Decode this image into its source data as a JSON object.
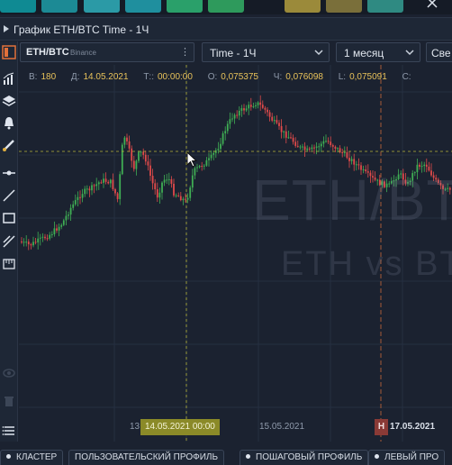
{
  "top_tabs": [
    {
      "color": "#0f8a93",
      "left": 0,
      "width": 40
    },
    {
      "color": "#1c8a95",
      "left": 46,
      "width": 40
    },
    {
      "color": "#2b9aa6",
      "left": 93,
      "width": 40
    },
    {
      "color": "#1f8f9e",
      "left": 139,
      "width": 40
    },
    {
      "color": "#2aa06a",
      "left": 185,
      "width": 40
    },
    {
      "color": "#2e9a5c",
      "left": 231,
      "width": 40
    },
    {
      "color": "#9b8a3a",
      "left": 316,
      "width": 40
    },
    {
      "color": "#7a6f3a",
      "left": 362,
      "width": 40
    },
    {
      "color": "#2f8a82",
      "left": 408,
      "width": 40
    }
  ],
  "window": {
    "title": "График ETH/BTC Time - 1Ч"
  },
  "toolbar": {
    "symbol": "ETH/BTC",
    "exchange": "Binance",
    "timeframe": "Time - 1Ч",
    "period": "1 месяц",
    "style_partial": "Све"
  },
  "info": {
    "volume_key": "В:",
    "volume": "180",
    "date_key": "Д:",
    "date": "14.05.2021",
    "time_key": "Т::",
    "time": "00:00:00",
    "open_key": "О:",
    "open": "0,075375",
    "high_key": "Ч:",
    "high": "0,076098",
    "low_key": "L:",
    "low": "0,075091",
    "close_key": "С:"
  },
  "watermark": {
    "line1": "ETH/BTC",
    "line2": "ETH vs BTC"
  },
  "xaxis": {
    "labels": [
      {
        "text": "13",
        "left": 144
      },
      {
        "text": "15.05.2021",
        "left": 288
      }
    ],
    "crosshair_label": "14.05.2021 00:00",
    "now_badge": "Н",
    "now_label": "17.05.2021"
  },
  "bottom_tabs": [
    {
      "label": "КЛАСТЕР",
      "dot": true
    },
    {
      "label": "ПОЛЬЗОВАТЕЛЬСКИЙ ПРОФИЛЬ",
      "dot": false
    },
    {
      "label": "ПОШАГОВЫЙ ПРОФИЛЬ",
      "dot": true
    },
    {
      "label": "ЛЕВЫЙ ПРО",
      "dot": true
    }
  ],
  "colors": {
    "bull": "#3fae54",
    "bear": "#e04a4a",
    "crosshair": "#b7b43a",
    "now_line": "#c86a3a"
  },
  "left_toolbar_icons": [
    "panel-toggle-icon",
    "indicators-icon",
    "layers-icon",
    "alert-bell-icon",
    "brush-icon",
    "horizontal-line-icon",
    "trend-line-icon",
    "rectangle-icon",
    "fibonacci-icon",
    "ruler-icon",
    "eye-icon",
    "trash-icon",
    "menu-icon"
  ]
}
